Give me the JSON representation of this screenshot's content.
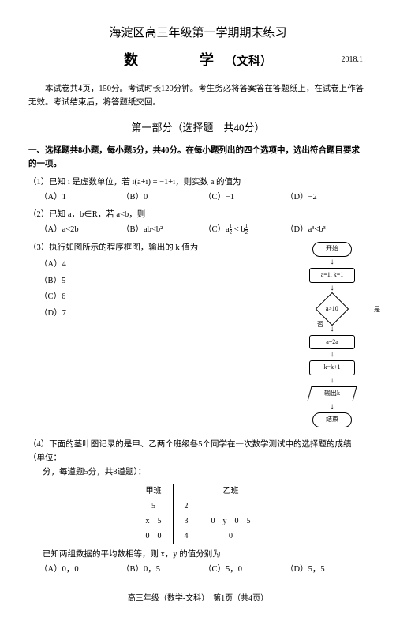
{
  "header": {
    "title": "海淀区高三年级第一学期期末练习",
    "subject": "数　　学",
    "ke": "（文科）",
    "date": "2018.1"
  },
  "intro": "本试卷共4页，150分。考试时长120分钟。考生务必将答案答在答题纸上，在试卷上作答无效。考试结束后，将答题纸交回。",
  "part1": "第一部分（选择题　共40分）",
  "section1": "一、选择题共8小题，每小题5分，共40分。在每小题列出的四个选项中，选出符合题目要求的一项。",
  "q1": {
    "text": "（1）已知 i 是虚数单位，若 i(a+i) = −1+i，则实数 a 的值为",
    "A": "（A）1",
    "B": "（B）0",
    "C": "（C）−1",
    "D": "（D）−2"
  },
  "q2": {
    "text": "（2）已知 a，b∈R，若 a<b，则",
    "A": "（A）a<2b",
    "B": "（B）ab<b²",
    "C": "（C）a½ < b½",
    "D": "（D）a³<b³"
  },
  "q3": {
    "text": "（3）执行如图所示的程序框图，输出的 k 值为",
    "A": "（A）4",
    "B": "（B）5",
    "C": "（C）6",
    "D": "（D）7"
  },
  "flow": {
    "start": "开始",
    "init": "a=1, k=1",
    "cond": "a>10",
    "yes": "是",
    "no": "否",
    "step1": "a=2a",
    "step2": "k=k+1",
    "out": "输出k",
    "end": "结束"
  },
  "q4": {
    "text": "（4）下面的茎叶图记录的是甲、乙两个班级各5个同学在一次数学测试中的选择题的成绩（单位：",
    "text2": "分，每道题5分，共8道题）：",
    "head_l": "甲班",
    "head_r": "乙班",
    "r1l": "5",
    "r1m": "2",
    "r1r": "",
    "r2l": "x　5",
    "r2m": "3",
    "r2r": "0　y　0　5",
    "r3l": "0　0",
    "r3m": "4",
    "r3r": "0",
    "tail": "已知两组数据的平均数相等，则 x，y 的值分别为",
    "A": "（A）0，0",
    "B": "（B）0，5",
    "C": "（C）5，0",
    "D": "（D）5，5"
  },
  "footer": "高三年级（数学-文科）　第1页（共4页）"
}
